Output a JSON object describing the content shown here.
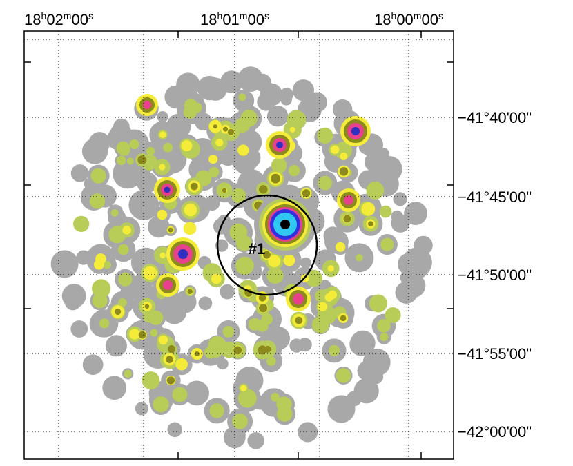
{
  "ra_labels": [
    [
      {
        "text": "18"
      },
      {
        "text": "h",
        "sup": true
      },
      {
        "text": "02"
      },
      {
        "text": "m",
        "sup": true
      },
      {
        "text": "00"
      },
      {
        "text": "s",
        "sup": true
      }
    ],
    [
      {
        "text": "18"
      },
      {
        "text": "h",
        "sup": true
      },
      {
        "text": "01"
      },
      {
        "text": "m",
        "sup": true
      },
      {
        "text": "00"
      },
      {
        "text": "s",
        "sup": true
      }
    ],
    [
      {
        "text": "18"
      },
      {
        "text": "h",
        "sup": true
      },
      {
        "text": "00"
      },
      {
        "text": "m",
        "sup": true
      },
      {
        "text": "00"
      },
      {
        "text": "s",
        "sup": true
      }
    ]
  ],
  "dec_labels": [
    "−41°40'00\"",
    "−41°45'00\"",
    "−41°50'00\"",
    "−41°55'00\"",
    "−42°00'00\""
  ],
  "source_label": "#1"
}
